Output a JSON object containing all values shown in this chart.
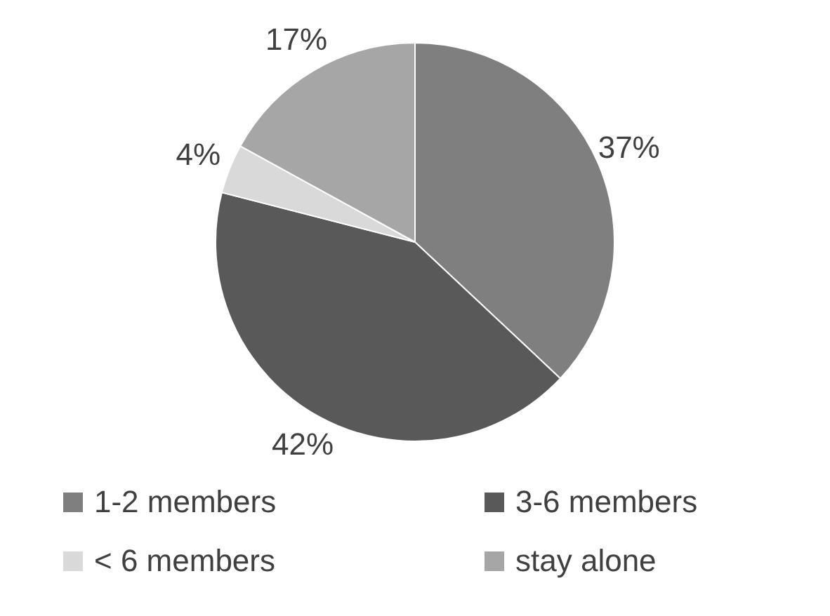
{
  "chart_data": {
    "type": "pie",
    "categories": [
      "1-2 members",
      "3-6 members",
      "< 6 members",
      "stay alone"
    ],
    "values": [
      37,
      42,
      4,
      17
    ],
    "colors": [
      "#7f7f7f",
      "#595959",
      "#d9d9d9",
      "#a6a6a6"
    ],
    "value_labels": [
      "37%",
      "42%",
      "4%",
      "17%"
    ],
    "legend": "bottom"
  }
}
